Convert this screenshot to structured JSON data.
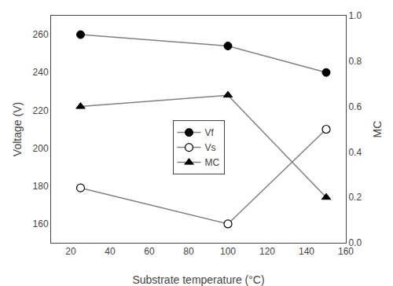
{
  "chart_data": {
    "type": "line",
    "xlabel": "Substrate temperature (°C)",
    "ylabel": "Voltage (V)",
    "y2label": "MC",
    "x": [
      25,
      100,
      150
    ],
    "series": [
      {
        "name": "Vf",
        "color": "#808080",
        "marker": "filled circle",
        "values": [
          260,
          254,
          240
        ]
      },
      {
        "name": "Vs",
        "color": "#808080",
        "marker": "open circle",
        "values": [
          179,
          160,
          210
        ]
      },
      {
        "name": "MC",
        "color": "#808080",
        "marker": "filled triangle",
        "axis": "y2",
        "values": [
          0.6,
          0.65,
          0.2
        ]
      }
    ],
    "xlim": [
      10,
      160
    ],
    "xticks": [
      20,
      40,
      60,
      80,
      100,
      120,
      140,
      160
    ],
    "ylim": [
      150,
      270
    ],
    "yticks": [
      160,
      180,
      200,
      220,
      240,
      260
    ],
    "y2lim": [
      0.0,
      1.0
    ],
    "y2ticks": [
      {
        "value": 0.0,
        "label": "0.0"
      },
      0.2,
      0.4,
      0.6,
      0.8,
      {
        "value": 1.0,
        "label": "1.0"
      }
    ],
    "grid": false,
    "legend": "center"
  }
}
